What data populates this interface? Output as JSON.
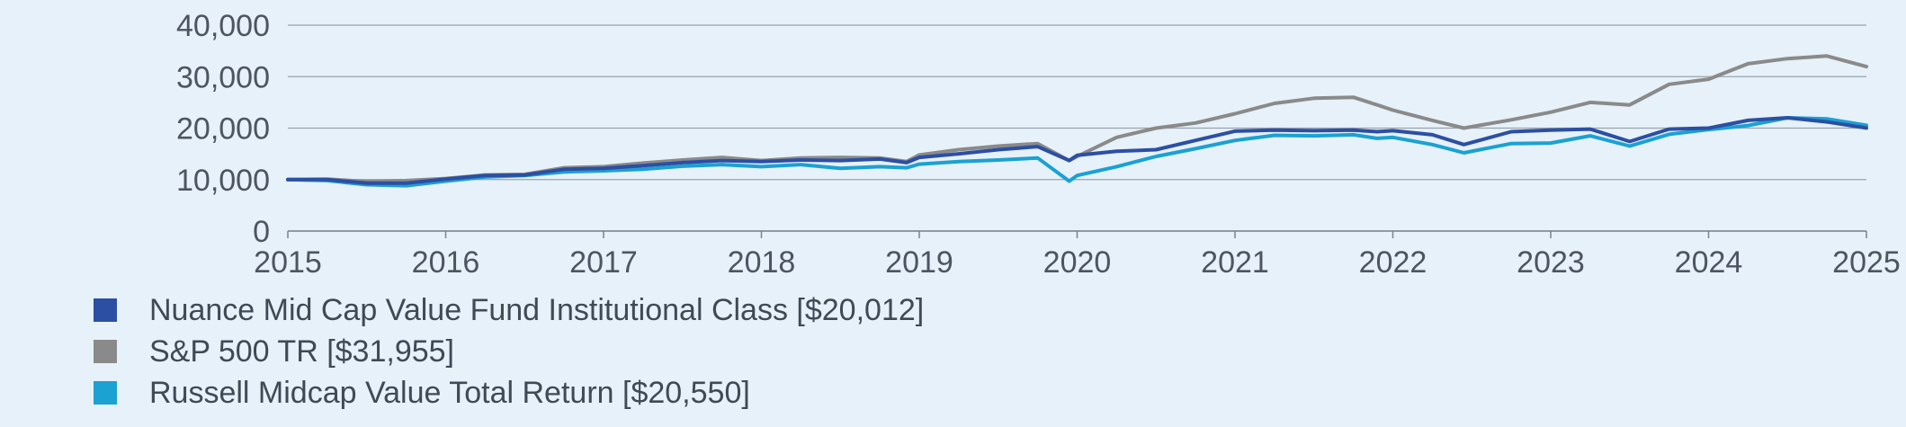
{
  "chart_data": {
    "type": "line",
    "title": "",
    "xlabel": "",
    "ylabel": "",
    "xlim": [
      2015,
      2025
    ],
    "ylim": [
      0,
      40000
    ],
    "y_ticks": [
      0,
      10000,
      20000,
      30000,
      40000
    ],
    "y_tick_labels": [
      "0",
      "10,000",
      "20,000",
      "30,000",
      "40,000"
    ],
    "x_ticks": [
      2015,
      2016,
      2017,
      2018,
      2019,
      2020,
      2021,
      2022,
      2023,
      2024,
      2025
    ],
    "x_tick_labels": [
      "2015",
      "2016",
      "2017",
      "2018",
      "2019",
      "2020",
      "2021",
      "2022",
      "2023",
      "2024",
      "2025"
    ],
    "grid": "horizontal",
    "legend_position": "bottom-left",
    "series": [
      {
        "name": "S&P 500 TR",
        "legend_label": "S&P 500 TR [$31,955]",
        "color": "#8a8a8a",
        "x": [
          2015.0,
          2015.25,
          2015.5,
          2015.75,
          2016.0,
          2016.25,
          2016.5,
          2016.75,
          2017.0,
          2017.25,
          2017.5,
          2017.75,
          2018.0,
          2018.25,
          2018.5,
          2018.75,
          2018.92,
          2019.0,
          2019.25,
          2019.5,
          2019.75,
          2019.95,
          2020.0,
          2020.25,
          2020.5,
          2020.75,
          2021.0,
          2021.25,
          2021.5,
          2021.75,
          2021.9,
          2022.0,
          2022.25,
          2022.45,
          2022.75,
          2023.0,
          2023.25,
          2023.5,
          2023.75,
          2024.0,
          2024.25,
          2024.5,
          2024.75,
          2025.0
        ],
        "y": [
          10000,
          10100,
          9600,
          9800,
          10200,
          10900,
          11000,
          12300,
          12500,
          13200,
          13800,
          14300,
          13700,
          14200,
          14300,
          14200,
          13500,
          14800,
          15800,
          16500,
          17000,
          13700,
          14500,
          18200,
          20000,
          21000,
          22800,
          24800,
          25800,
          26000,
          24500,
          23500,
          21500,
          20000,
          21600,
          23100,
          25000,
          24500,
          28500,
          29500,
          32500,
          33500,
          34000,
          31955
        ]
      },
      {
        "name": "Russell Midcap Value Total Return",
        "legend_label": "Russell Midcap Value Total Return [$20,550]",
        "color": "#1ba1d2",
        "x": [
          2015.0,
          2015.25,
          2015.5,
          2015.75,
          2016.0,
          2016.25,
          2016.5,
          2016.75,
          2017.0,
          2017.25,
          2017.5,
          2017.75,
          2018.0,
          2018.25,
          2018.5,
          2018.75,
          2018.92,
          2019.0,
          2019.25,
          2019.5,
          2019.75,
          2019.95,
          2020.0,
          2020.25,
          2020.5,
          2020.75,
          2021.0,
          2021.25,
          2021.5,
          2021.75,
          2021.9,
          2022.0,
          2022.25,
          2022.45,
          2022.75,
          2023.0,
          2023.25,
          2023.5,
          2023.75,
          2024.0,
          2024.25,
          2024.5,
          2024.75,
          2025.0
        ],
        "y": [
          10000,
          9800,
          9000,
          8800,
          9700,
          10500,
          10800,
          11500,
          11700,
          12000,
          12600,
          12900,
          12500,
          12900,
          12200,
          12500,
          12300,
          13000,
          13500,
          13800,
          14200,
          9700,
          10800,
          12500,
          14500,
          16000,
          17600,
          18600,
          18500,
          18700,
          18000,
          18200,
          16800,
          15200,
          17000,
          17100,
          18500,
          16500,
          18800,
          19700,
          20500,
          22000,
          21800,
          20550
        ]
      },
      {
        "name": "Nuance Mid Cap Value Fund Institutional Class",
        "legend_label": "Nuance Mid Cap Value Fund Institutional Class [$20,012]",
        "color": "#2c4fa3",
        "x": [
          2015.0,
          2015.25,
          2015.5,
          2015.75,
          2016.0,
          2016.25,
          2016.5,
          2016.75,
          2017.0,
          2017.25,
          2017.5,
          2017.75,
          2018.0,
          2018.25,
          2018.5,
          2018.75,
          2018.92,
          2019.0,
          2019.25,
          2019.5,
          2019.75,
          2019.95,
          2020.0,
          2020.25,
          2020.5,
          2020.75,
          2021.0,
          2021.25,
          2021.5,
          2021.75,
          2021.9,
          2022.0,
          2022.25,
          2022.45,
          2022.75,
          2023.0,
          2023.25,
          2023.5,
          2023.75,
          2024.0,
          2024.25,
          2024.5,
          2024.75,
          2025.0
        ],
        "y": [
          10000,
          10000,
          9300,
          9300,
          10100,
          10800,
          10900,
          12000,
          12200,
          12700,
          13300,
          13700,
          13500,
          13800,
          13700,
          14000,
          13300,
          14300,
          15000,
          15800,
          16400,
          13700,
          14700,
          15500,
          15800,
          17600,
          19400,
          19600,
          19500,
          19600,
          19300,
          19500,
          18700,
          16800,
          19300,
          19600,
          19800,
          17400,
          19800,
          20000,
          21500,
          22000,
          21200,
          20012
        ]
      }
    ]
  }
}
